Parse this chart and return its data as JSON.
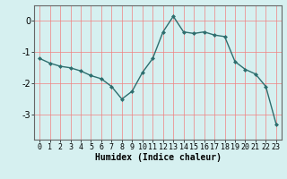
{
  "x": [
    0,
    1,
    2,
    3,
    4,
    5,
    6,
    7,
    8,
    9,
    10,
    11,
    12,
    13,
    14,
    15,
    16,
    17,
    18,
    19,
    20,
    21,
    22,
    23
  ],
  "y": [
    -1.2,
    -1.35,
    -1.45,
    -1.5,
    -1.6,
    -1.75,
    -1.85,
    -2.1,
    -2.5,
    -2.25,
    -1.65,
    -1.2,
    -0.35,
    0.15,
    -0.35,
    -0.4,
    -0.35,
    -0.45,
    -0.5,
    -1.3,
    -1.55,
    -1.7,
    -2.1,
    -3.3
  ],
  "line_color": "#2d6e6e",
  "marker": "D",
  "marker_size": 2,
  "bg_color": "#d6f0f0",
  "grid_color": "#f08080",
  "xlabel": "Humidex (Indice chaleur)",
  "xlim": [
    -0.5,
    23.5
  ],
  "ylim": [
    -3.8,
    0.5
  ],
  "yticks": [
    0,
    -1,
    -2,
    -3
  ],
  "xticks": [
    0,
    1,
    2,
    3,
    4,
    5,
    6,
    7,
    8,
    9,
    10,
    11,
    12,
    13,
    14,
    15,
    16,
    17,
    18,
    19,
    20,
    21,
    22,
    23
  ],
  "line_width": 1.0,
  "xlabel_fontsize": 7,
  "tick_fontsize": 6,
  "ytick_fontsize": 7
}
